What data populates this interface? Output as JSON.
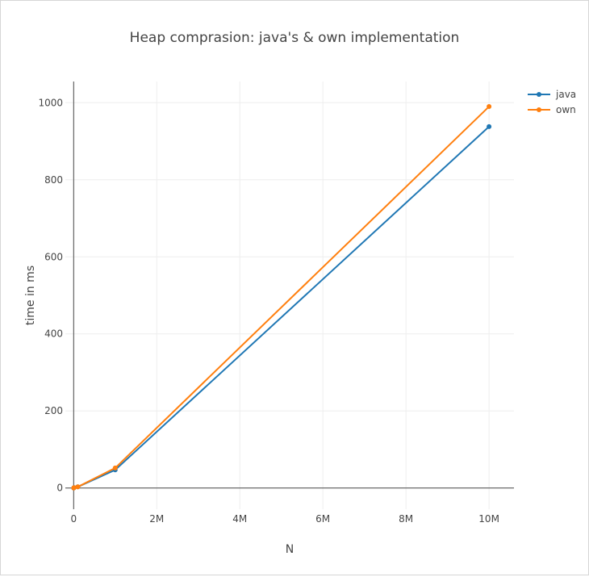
{
  "chart_data": {
    "type": "line",
    "title": "Heap comprasion: java's & own implementation",
    "xlabel": "N",
    "ylabel": "time in ms",
    "xlim": [
      -200000,
      10600000
    ],
    "ylim": [
      -55,
      1055
    ],
    "x_ticks": [
      {
        "value": 0,
        "label": "0"
      },
      {
        "value": 2000000,
        "label": "2M"
      },
      {
        "value": 4000000,
        "label": "4M"
      },
      {
        "value": 6000000,
        "label": "6M"
      },
      {
        "value": 8000000,
        "label": "8M"
      },
      {
        "value": 10000000,
        "label": "10M"
      }
    ],
    "y_ticks": [
      {
        "value": 0,
        "label": "0"
      },
      {
        "value": 200,
        "label": "200"
      },
      {
        "value": 400,
        "label": "400"
      },
      {
        "value": 600,
        "label": "600"
      },
      {
        "value": 800,
        "label": "800"
      },
      {
        "value": 1000,
        "label": "1000"
      }
    ],
    "grid": true,
    "legend": "top-right",
    "series": [
      {
        "name": "java",
        "color": "#1f77b4",
        "x": [
          1000,
          10000,
          100000,
          1000000,
          10000000
        ],
        "y": [
          0,
          1,
          3,
          47,
          938
        ]
      },
      {
        "name": "own",
        "color": "#ff7f0e",
        "x": [
          1000,
          10000,
          100000,
          1000000,
          10000000
        ],
        "y": [
          0,
          1,
          3,
          52,
          990
        ]
      }
    ]
  }
}
